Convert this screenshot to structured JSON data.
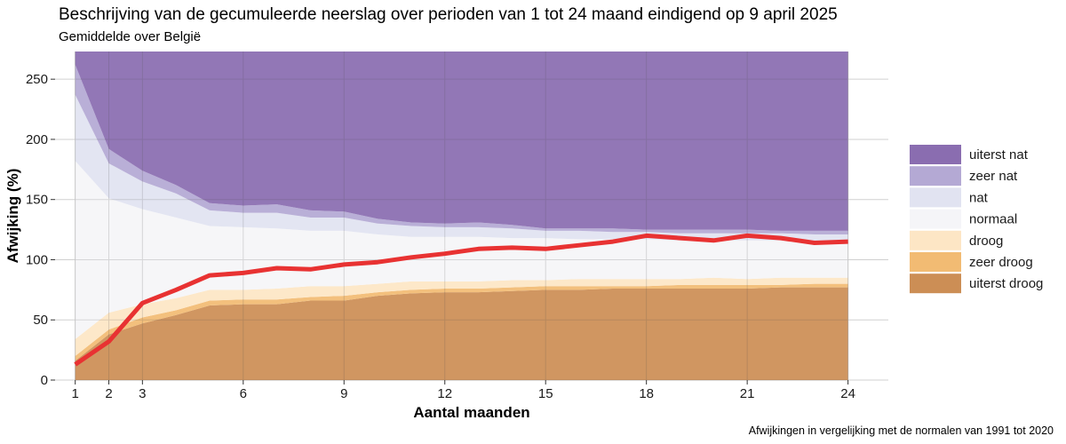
{
  "title": "Beschrijving van de gecumuleerde neerslag over perioden van 1 tot 24 maand eindigend op 9 april 2025",
  "subtitle": "Gemiddelde over België",
  "caption": "Afwijkingen in vergelijking met de normalen van 1991 tot 2020",
  "chart_data": {
    "type": "area",
    "xlabel": "Aantal maanden",
    "ylabel": "Afwijking (%)",
    "xlim": [
      0.4,
      25.2
    ],
    "ylim": [
      0,
      273
    ],
    "x_ticks": [
      1,
      2,
      3,
      6,
      9,
      12,
      15,
      18,
      21,
      24
    ],
    "y_ticks": [
      0,
      50,
      100,
      150,
      200,
      250
    ],
    "grid": true,
    "legend_position": "right",
    "x": [
      1,
      2,
      3,
      4,
      5,
      6,
      7,
      8,
      9,
      10,
      11,
      12,
      13,
      14,
      15,
      16,
      17,
      18,
      19,
      20,
      21,
      22,
      23,
      24
    ],
    "bands": [
      {
        "name": "uiterst droog",
        "color": "#cc8e55",
        "upper": [
          16,
          38,
          47,
          54,
          62,
          63,
          63,
          66,
          66,
          70,
          72,
          73,
          73,
          74,
          75,
          75,
          76,
          76,
          76,
          76,
          76,
          77,
          77,
          77
        ]
      },
      {
        "name": "zeer droog",
        "color": "#f2bb73",
        "upper": [
          20,
          42,
          52,
          58,
          66,
          67,
          67,
          69,
          70,
          73,
          75,
          76,
          76,
          77,
          78,
          78,
          78,
          78,
          79,
          79,
          79,
          79,
          80,
          80
        ]
      },
      {
        "name": "droog",
        "color": "#fde6c5",
        "upper": [
          34,
          56,
          63,
          68,
          75,
          75,
          76,
          78,
          78,
          80,
          82,
          82,
          82,
          83,
          83,
          84,
          84,
          84,
          84,
          85,
          84,
          85,
          85,
          85
        ]
      },
      {
        "name": "normaal",
        "color": "#f5f5f8",
        "upper": [
          182,
          151,
          142,
          135,
          128,
          127,
          126,
          124,
          124,
          121,
          119,
          119,
          119,
          118,
          118,
          117,
          117,
          117,
          116,
          116,
          116,
          116,
          115,
          115
        ]
      },
      {
        "name": "nat",
        "color": "#e1e3f1",
        "upper": [
          237,
          180,
          165,
          155,
          141,
          139,
          139,
          135,
          135,
          130,
          128,
          127,
          127,
          126,
          124,
          124,
          123,
          123,
          122,
          122,
          122,
          122,
          121,
          121
        ]
      },
      {
        "name": "zeer nat",
        "color": "#b4a9d4",
        "upper": [
          262,
          192,
          174,
          162,
          147,
          145,
          146,
          141,
          140,
          134,
          131,
          130,
          131,
          129,
          126,
          126,
          126,
          125,
          125,
          125,
          125,
          124,
          124,
          124
        ]
      },
      {
        "name": "uiterst nat",
        "color": "#8a6db0",
        "upper": [
          273,
          273,
          273,
          273,
          273,
          273,
          273,
          273,
          273,
          273,
          273,
          273,
          273,
          273,
          273,
          273,
          273,
          273,
          273,
          273,
          273,
          273,
          273,
          273
        ]
      }
    ],
    "series": [
      {
        "values": [
          13,
          32,
          64,
          75,
          87,
          89,
          93,
          92,
          96,
          98,
          102,
          105,
          109,
          110,
          109,
          112,
          115,
          120,
          118,
          116,
          120,
          118,
          114,
          115
        ],
        "color": "#e83232"
      }
    ],
    "legend": [
      "uiterst nat",
      "zeer nat",
      "nat",
      "normaal",
      "droog",
      "zeer droog",
      "uiterst droog"
    ]
  }
}
